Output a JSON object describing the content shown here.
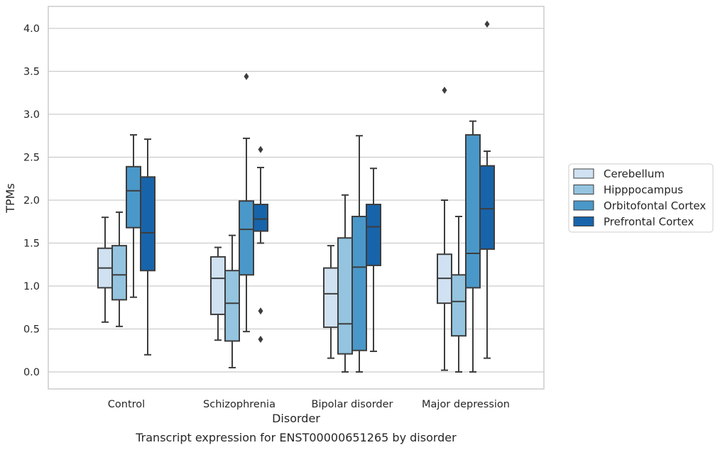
{
  "chart_data": {
    "type": "box",
    "xlabel": "Disorder",
    "ylabel": "TPMs",
    "caption": "Transcript expression for ENST00000651265 by disorder",
    "ylim": [
      -0.2,
      4.27
    ],
    "yticks": [
      "0.0",
      "0.5",
      "1.0",
      "1.5",
      "2.0",
      "2.5",
      "3.0",
      "3.5",
      "4.0"
    ],
    "grid": "horizontal",
    "legend_position": "right",
    "categories": [
      "Control",
      "Schizophrenia",
      "Bipolar disorder",
      "Major depression"
    ],
    "series": [
      {
        "name": "Cerebellum",
        "color": "#d0e1f2",
        "boxes": [
          {
            "whislo": 0.58,
            "q1": 0.98,
            "med": 1.21,
            "q3": 1.44,
            "whishi": 1.8,
            "fliers": []
          },
          {
            "whislo": 0.37,
            "q1": 0.67,
            "med": 1.09,
            "q3": 1.34,
            "whishi": 1.45,
            "fliers": []
          },
          {
            "whislo": 0.16,
            "q1": 0.52,
            "med": 0.91,
            "q3": 1.21,
            "whishi": 1.47,
            "fliers": []
          },
          {
            "whislo": 0.02,
            "q1": 0.8,
            "med": 1.09,
            "q3": 1.37,
            "whishi": 2.0,
            "fliers": [
              3.28
            ]
          }
        ]
      },
      {
        "name": "Hipppocampus",
        "color": "#94c4df",
        "boxes": [
          {
            "whislo": 0.53,
            "q1": 0.84,
            "med": 1.13,
            "q3": 1.47,
            "whishi": 1.86,
            "fliers": []
          },
          {
            "whislo": 0.05,
            "q1": 0.36,
            "med": 0.8,
            "q3": 1.18,
            "whishi": 1.59,
            "fliers": []
          },
          {
            "whislo": 0.0,
            "q1": 0.21,
            "med": 0.56,
            "q3": 1.56,
            "whishi": 2.06,
            "fliers": []
          },
          {
            "whislo": 0.0,
            "q1": 0.42,
            "med": 0.82,
            "q3": 1.13,
            "whishi": 1.81,
            "fliers": []
          }
        ]
      },
      {
        "name": "Orbitofontal Cortex",
        "color": "#4a98c9",
        "boxes": [
          {
            "whislo": 0.87,
            "q1": 1.68,
            "med": 2.11,
            "q3": 2.39,
            "whishi": 2.76,
            "fliers": []
          },
          {
            "whislo": 0.47,
            "q1": 1.13,
            "med": 1.66,
            "q3": 1.99,
            "whishi": 2.72,
            "fliers": [
              3.44
            ]
          },
          {
            "whislo": 0.0,
            "q1": 0.25,
            "med": 1.22,
            "q3": 1.81,
            "whishi": 2.75,
            "fliers": []
          },
          {
            "whislo": 0.0,
            "q1": 0.98,
            "med": 1.38,
            "q3": 2.76,
            "whishi": 2.92,
            "fliers": []
          }
        ]
      },
      {
        "name": "Prefrontal Cortex",
        "color": "#1764ab",
        "boxes": [
          {
            "whislo": 0.2,
            "q1": 1.18,
            "med": 1.62,
            "q3": 2.27,
            "whishi": 2.71,
            "fliers": []
          },
          {
            "whislo": 1.5,
            "q1": 1.64,
            "med": 1.78,
            "q3": 1.95,
            "whishi": 2.38,
            "fliers": [
              2.59,
              0.71,
              0.38
            ]
          },
          {
            "whislo": 0.24,
            "q1": 1.24,
            "med": 1.69,
            "q3": 1.95,
            "whishi": 2.37,
            "fliers": []
          },
          {
            "whislo": 0.16,
            "q1": 1.43,
            "med": 1.9,
            "q3": 2.4,
            "whishi": 2.57,
            "fliers": [
              4.05
            ]
          }
        ]
      }
    ]
  }
}
